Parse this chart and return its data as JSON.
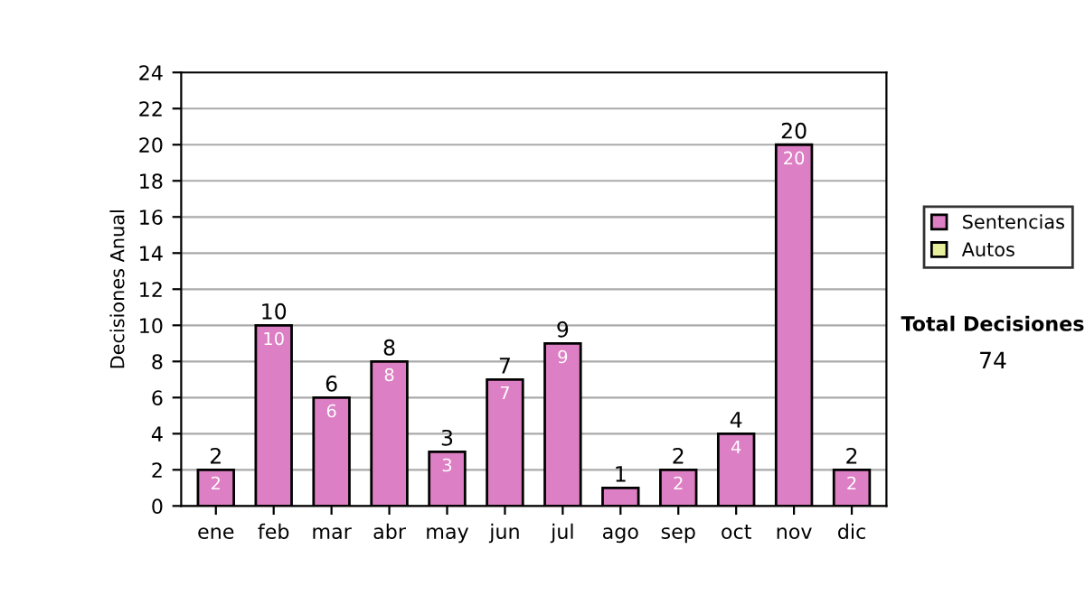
{
  "chart_data": {
    "type": "bar",
    "ylabel": "Decisiones Anual",
    "categories": [
      "ene",
      "feb",
      "mar",
      "abr",
      "may",
      "jun",
      "jul",
      "ago",
      "sep",
      "oct",
      "nov",
      "dic"
    ],
    "series": [
      {
        "name": "Sentencias",
        "color": "#dd7fc4",
        "values": [
          2,
          10,
          6,
          8,
          3,
          7,
          9,
          1,
          2,
          4,
          20,
          2
        ],
        "value_labels": [
          "2",
          "10",
          "6",
          "8",
          "3",
          "7",
          "9",
          null,
          "2",
          "4",
          "20",
          "2"
        ]
      },
      {
        "name": "Autos",
        "color": "#e8ef9a",
        "values": [
          null,
          null,
          null,
          null,
          null,
          null,
          null,
          null,
          null,
          null,
          null,
          null
        ]
      }
    ],
    "stacked": true,
    "totals": [
      "2",
      "10",
      "6",
      "8",
      "3",
      "7",
      "9",
      "1",
      "2",
      "4",
      "20",
      "2"
    ],
    "ylim": [
      0,
      24
    ],
    "yticks": [
      0,
      2,
      4,
      6,
      8,
      10,
      12,
      14,
      16,
      18,
      20,
      22,
      24
    ],
    "grid": "y",
    "legend": "right",
    "annotations": [
      "Total Decisiones",
      "74"
    ]
  }
}
